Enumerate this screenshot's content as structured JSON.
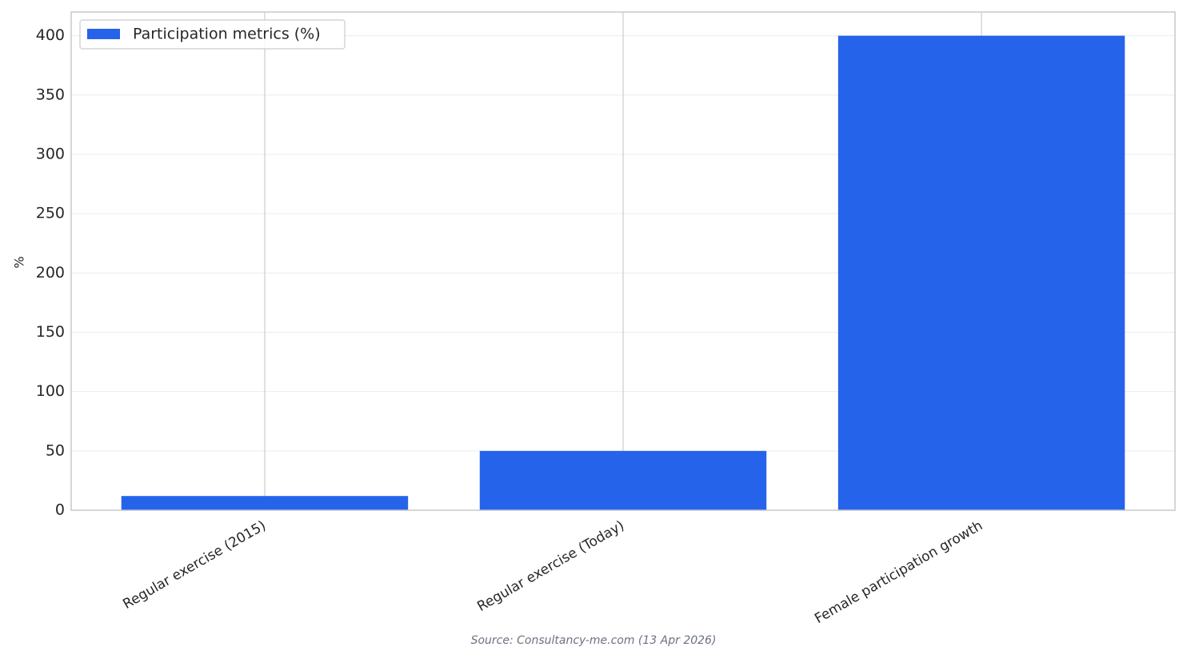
{
  "chart_data": {
    "type": "bar",
    "categories": [
      "Regular exercise (2015)",
      "Regular exercise (Today)",
      "Female participation growth"
    ],
    "series": [
      {
        "name": "Participation metrics (%)",
        "color": "#2563eb",
        "values": [
          12,
          50,
          400
        ]
      }
    ],
    "ylabel": "%",
    "ylim": [
      0,
      420
    ],
    "yticks": [
      0,
      50,
      100,
      150,
      200,
      250,
      300,
      350,
      400
    ],
    "grid": true,
    "legend": "upper left",
    "source": "Source: Consultancy-me.com (13 Apr 2026)"
  }
}
